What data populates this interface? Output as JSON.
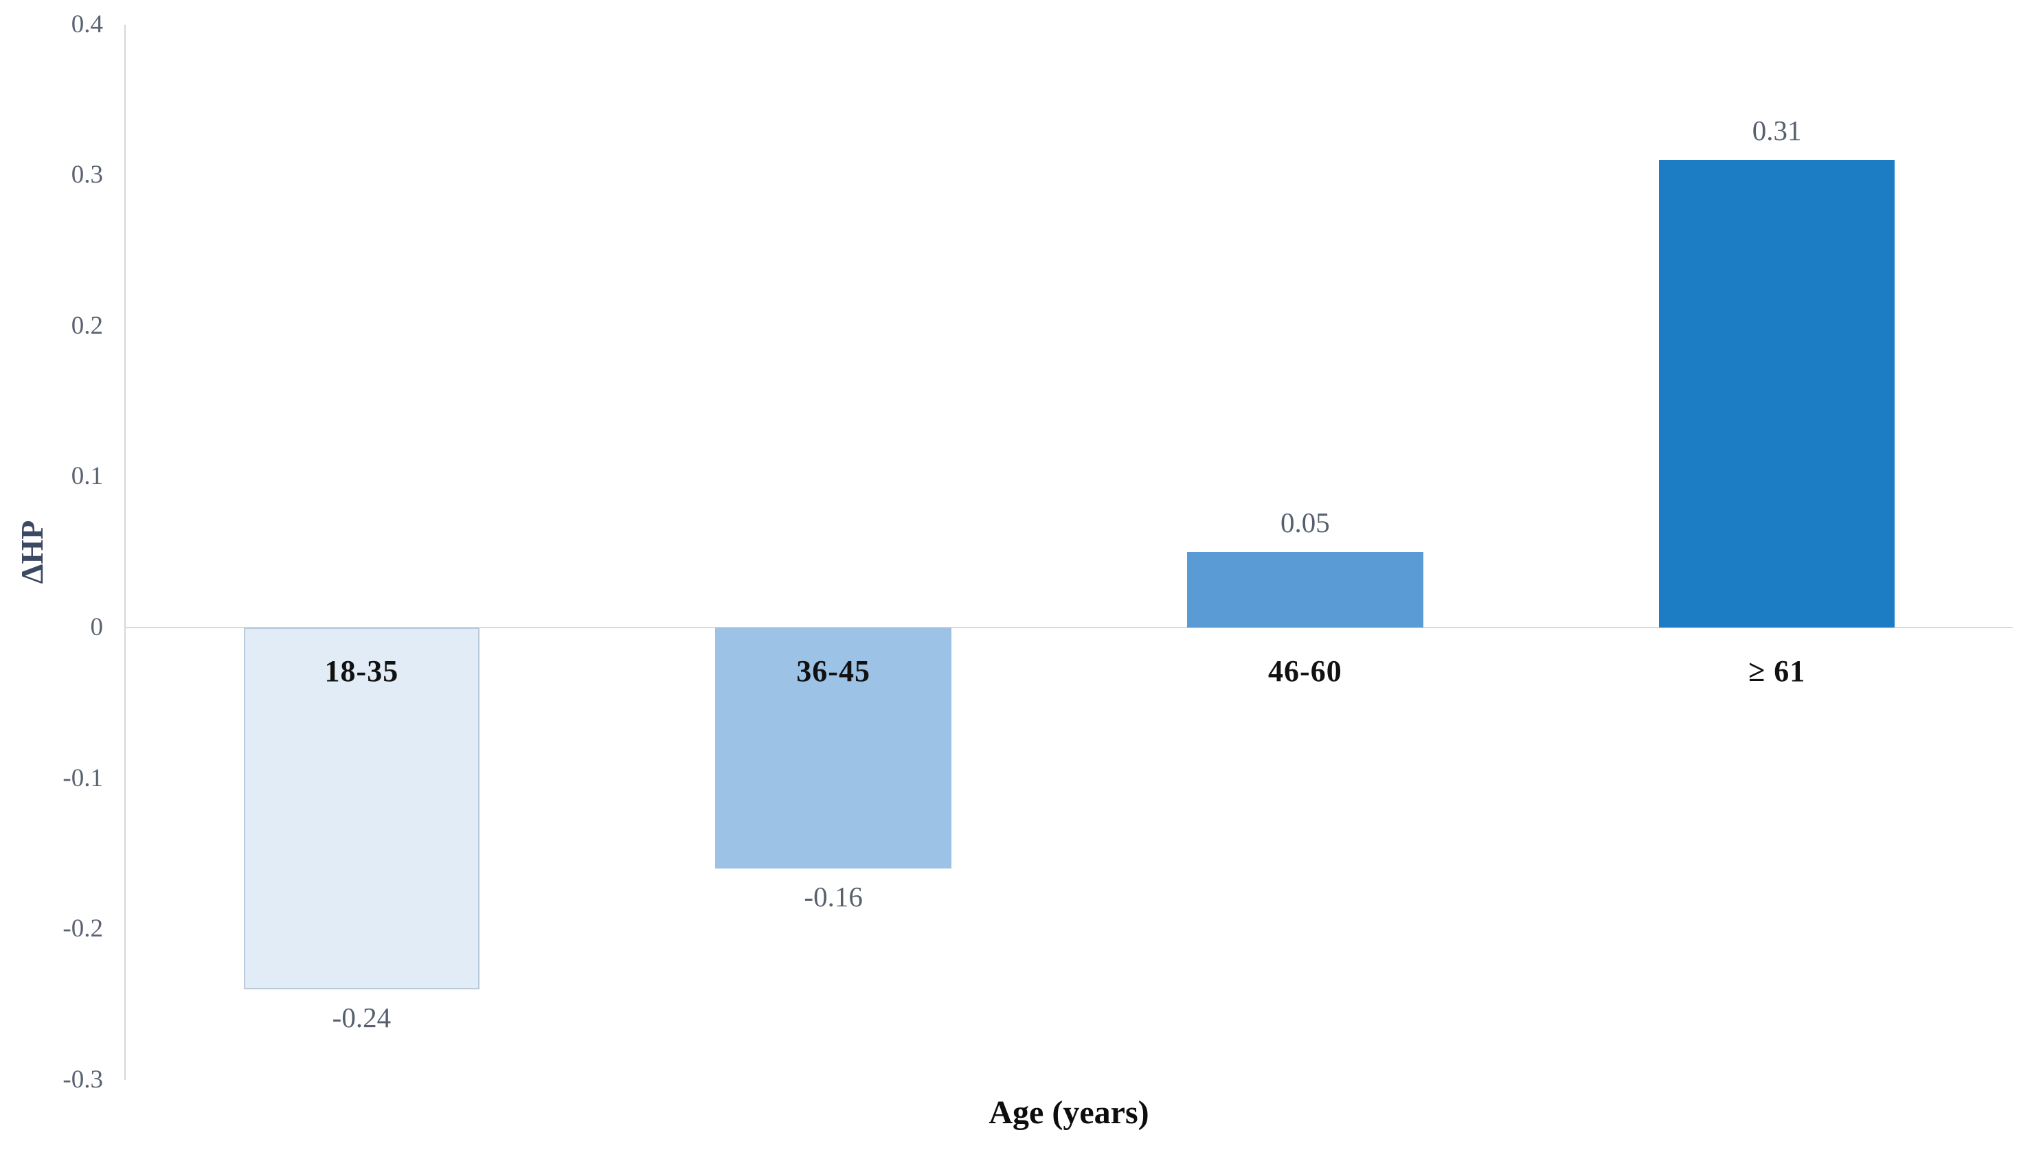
{
  "chart_data": {
    "type": "bar",
    "title": "",
    "categories": [
      "18-35",
      "36-45",
      "46-60",
      "≥ 61"
    ],
    "values": [
      -0.24,
      -0.16,
      0.05,
      0.31
    ],
    "value_labels": [
      "-0.24",
      "-0.16",
      "0.05",
      "0.31"
    ],
    "xlabel": "Age (years)",
    "ylabel": "ΔHP",
    "ylim": [
      -0.3,
      0.4
    ],
    "ytick_step": 0.1,
    "ytick_labels": [
      "0.4",
      "0.3",
      "0.2",
      "0.1",
      "0",
      "-0.1",
      "-0.2",
      "-0.3"
    ],
    "grid": "zero-baseline-only",
    "legend": "none",
    "bar_colors": [
      "#e1ecf6",
      "#9cc3e5",
      "#5b9bd5",
      "#1d7dc4"
    ],
    "bar_border_colors": [
      "#b9cada",
      "none",
      "none",
      "none"
    ],
    "axis_line_color": "#d6d6d6",
    "zero_line_color": "#d9d9d9",
    "tick_label_color": "#5b6372",
    "value_label_color": "#57606e",
    "category_label_color": "#111111",
    "ylabel_color": "#3c4a61",
    "xlabel_color": "#0d0d0d"
  }
}
